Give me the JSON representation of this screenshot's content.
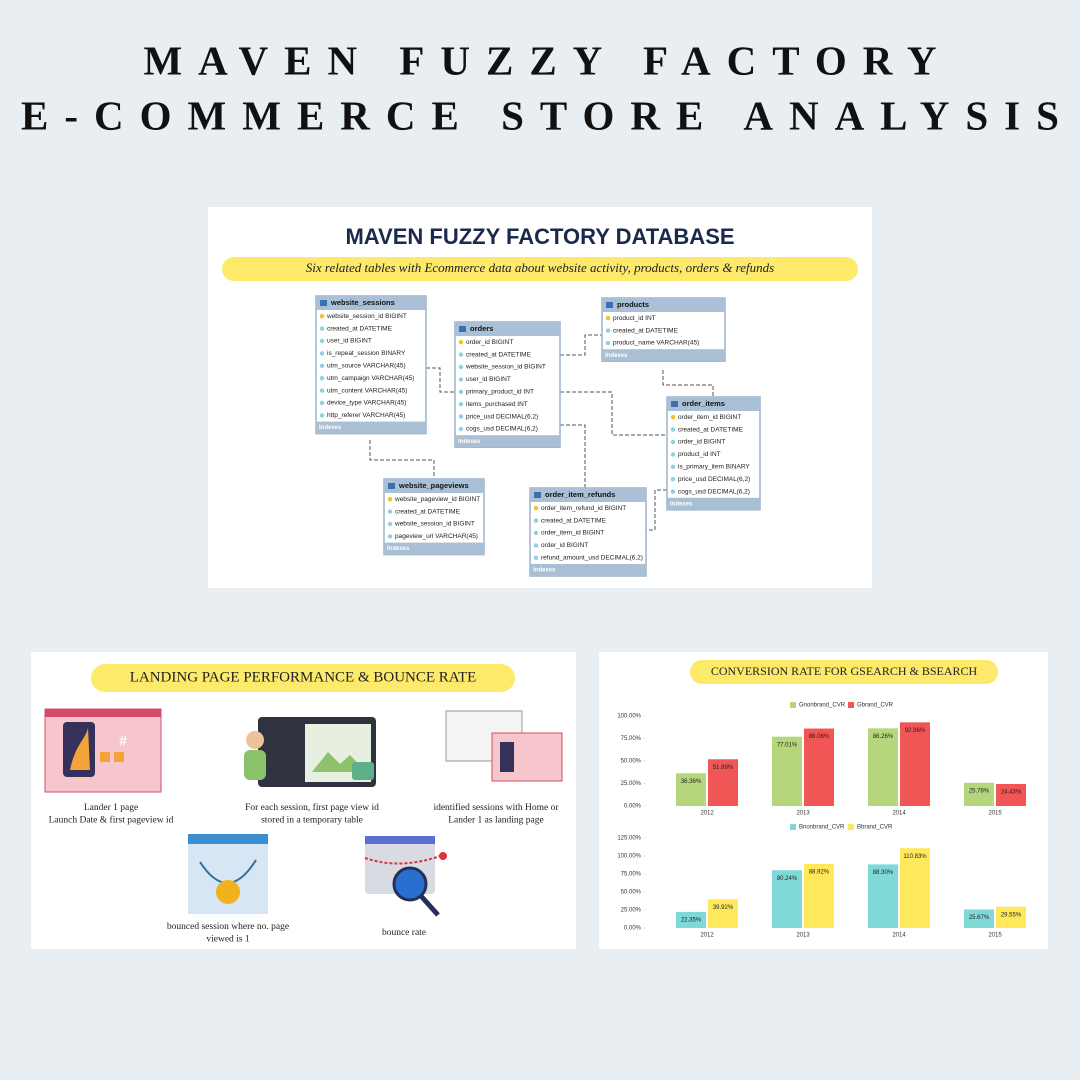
{
  "header": {
    "title_lines": [
      "MAVEN FUZZY FACTORY",
      "E-COMMERCE STORE ANALYSIS"
    ]
  },
  "database": {
    "title": "MAVEN FUZZY FACTORY DATABASE",
    "subtitle": "Six related tables with Ecommerce data about website activity, products, orders & refunds",
    "tables": [
      {
        "name": "website_sessions",
        "fields": [
          "website_session_id BIGINT",
          "created_at DATETIME",
          "user_id BIGINT",
          "is_repeat_session BINARY",
          "utm_source VARCHAR(45)",
          "utm_campaign VARCHAR(45)",
          "utm_content VARCHAR(45)",
          "device_type VARCHAR(45)",
          "http_referer VARCHAR(45)"
        ],
        "footer": "Indexes"
      },
      {
        "name": "orders",
        "fields": [
          "order_id BIGINT",
          "created_at DATETIME",
          "website_session_id BIGINT",
          "user_id BIGINT",
          "primary_product_id INT",
          "items_purchased INT",
          "price_usd DECIMAL(6,2)",
          "cogs_usd DECIMAL(6,2)"
        ],
        "footer": "Indexes"
      },
      {
        "name": "products",
        "fields": [
          "product_id INT",
          "created_at DATETIME",
          "product_name VARCHAR(45)"
        ],
        "footer": "Indexes"
      },
      {
        "name": "order_items",
        "fields": [
          "order_item_id BIGINT",
          "created_at DATETIME",
          "order_id BIGINT",
          "product_id INT",
          "is_primary_item BINARY",
          "price_usd DECIMAL(6,2)",
          "cogs_usd DECIMAL(6,2)"
        ],
        "footer": "Indexes"
      },
      {
        "name": "website_pageviews",
        "fields": [
          "website_pageview_id BIGINT",
          "created_at DATETIME",
          "website_session_id BIGINT",
          "pageview_url VARCHAR(45)"
        ],
        "footer": "Indexes"
      },
      {
        "name": "order_item_refunds",
        "fields": [
          "order_item_refund_id BIGINT",
          "created_at DATETIME",
          "order_item_id BIGINT",
          "order_id BIGINT",
          "refund_amount_usd DECIMAL(6,2)"
        ],
        "footer": "Indexes"
      }
    ]
  },
  "landing": {
    "title": "LANDING PAGE PERFORMANCE & BOUNCE RATE",
    "steps": [
      {
        "lines": [
          "Lander 1 page",
          "Launch Date & first pageview id"
        ]
      },
      {
        "lines": [
          "For each session, first page view id",
          "stored in a temporary table"
        ]
      },
      {
        "lines": [
          "identified sessions with Home or",
          "Lander 1 as landing page"
        ]
      },
      {
        "lines": [
          "bounced session where no. page",
          "viewed is 1"
        ]
      },
      {
        "lines": [
          "bounce rate"
        ]
      }
    ]
  },
  "conversion_panel": {
    "title": "CONVERSION RATE FOR GSEARCH & BSEARCH"
  },
  "chart_data": [
    {
      "type": "bar",
      "categories": [
        "2012",
        "2013",
        "2014",
        "2015"
      ],
      "series": [
        {
          "name": "Gnonbrand_CVR",
          "color": "#b5d67a",
          "values": [
            36.36,
            77.01,
            86.26,
            25.78
          ],
          "value_labels": [
            "36.36%",
            "77.01%",
            "86.26%",
            "25.78%"
          ]
        },
        {
          "name": "Gbrand_CVR",
          "color": "#f05656",
          "values": [
            51.89,
            86.06,
            92.96,
            24.43
          ],
          "value_labels": [
            "51.89%",
            "86.06%",
            "92.96%",
            "24.43%"
          ]
        }
      ],
      "ylim": [
        0,
        100
      ],
      "yticks": [
        {
          "value": 0,
          "label": "0.00%"
        },
        {
          "value": 25,
          "label": "25.00%"
        },
        {
          "value": 50,
          "label": "50.00%"
        },
        {
          "value": 75,
          "label": "75.00%"
        },
        {
          "value": 100,
          "label": "100.00%"
        }
      ]
    },
    {
      "type": "bar",
      "categories": [
        "2012",
        "2013",
        "2014",
        "2015"
      ],
      "series": [
        {
          "name": "Bnonbrand_CVR",
          "color": "#7fd9d6",
          "values": [
            22.35,
            80.24,
            88.3,
            25.67
          ],
          "value_labels": [
            "22.35%",
            "80.24%",
            "88.30%",
            "25.67%"
          ]
        },
        {
          "name": "Bbrand_CVR",
          "color": "#ffe95a",
          "values": [
            39.92,
            88.92,
            110.83,
            29.55
          ],
          "value_labels": [
            "39.92%",
            "88.92%",
            "110.83%",
            "29.55%"
          ]
        }
      ],
      "ylim": [
        0,
        125
      ],
      "yticks": [
        {
          "value": 0,
          "label": "0.00%"
        },
        {
          "value": 25,
          "label": "25.00%"
        },
        {
          "value": 50,
          "label": "50.00%"
        },
        {
          "value": 75,
          "label": "75.00%"
        },
        {
          "value": 100,
          "label": "100.00%"
        },
        {
          "value": 125,
          "label": "125.00%"
        }
      ]
    }
  ]
}
